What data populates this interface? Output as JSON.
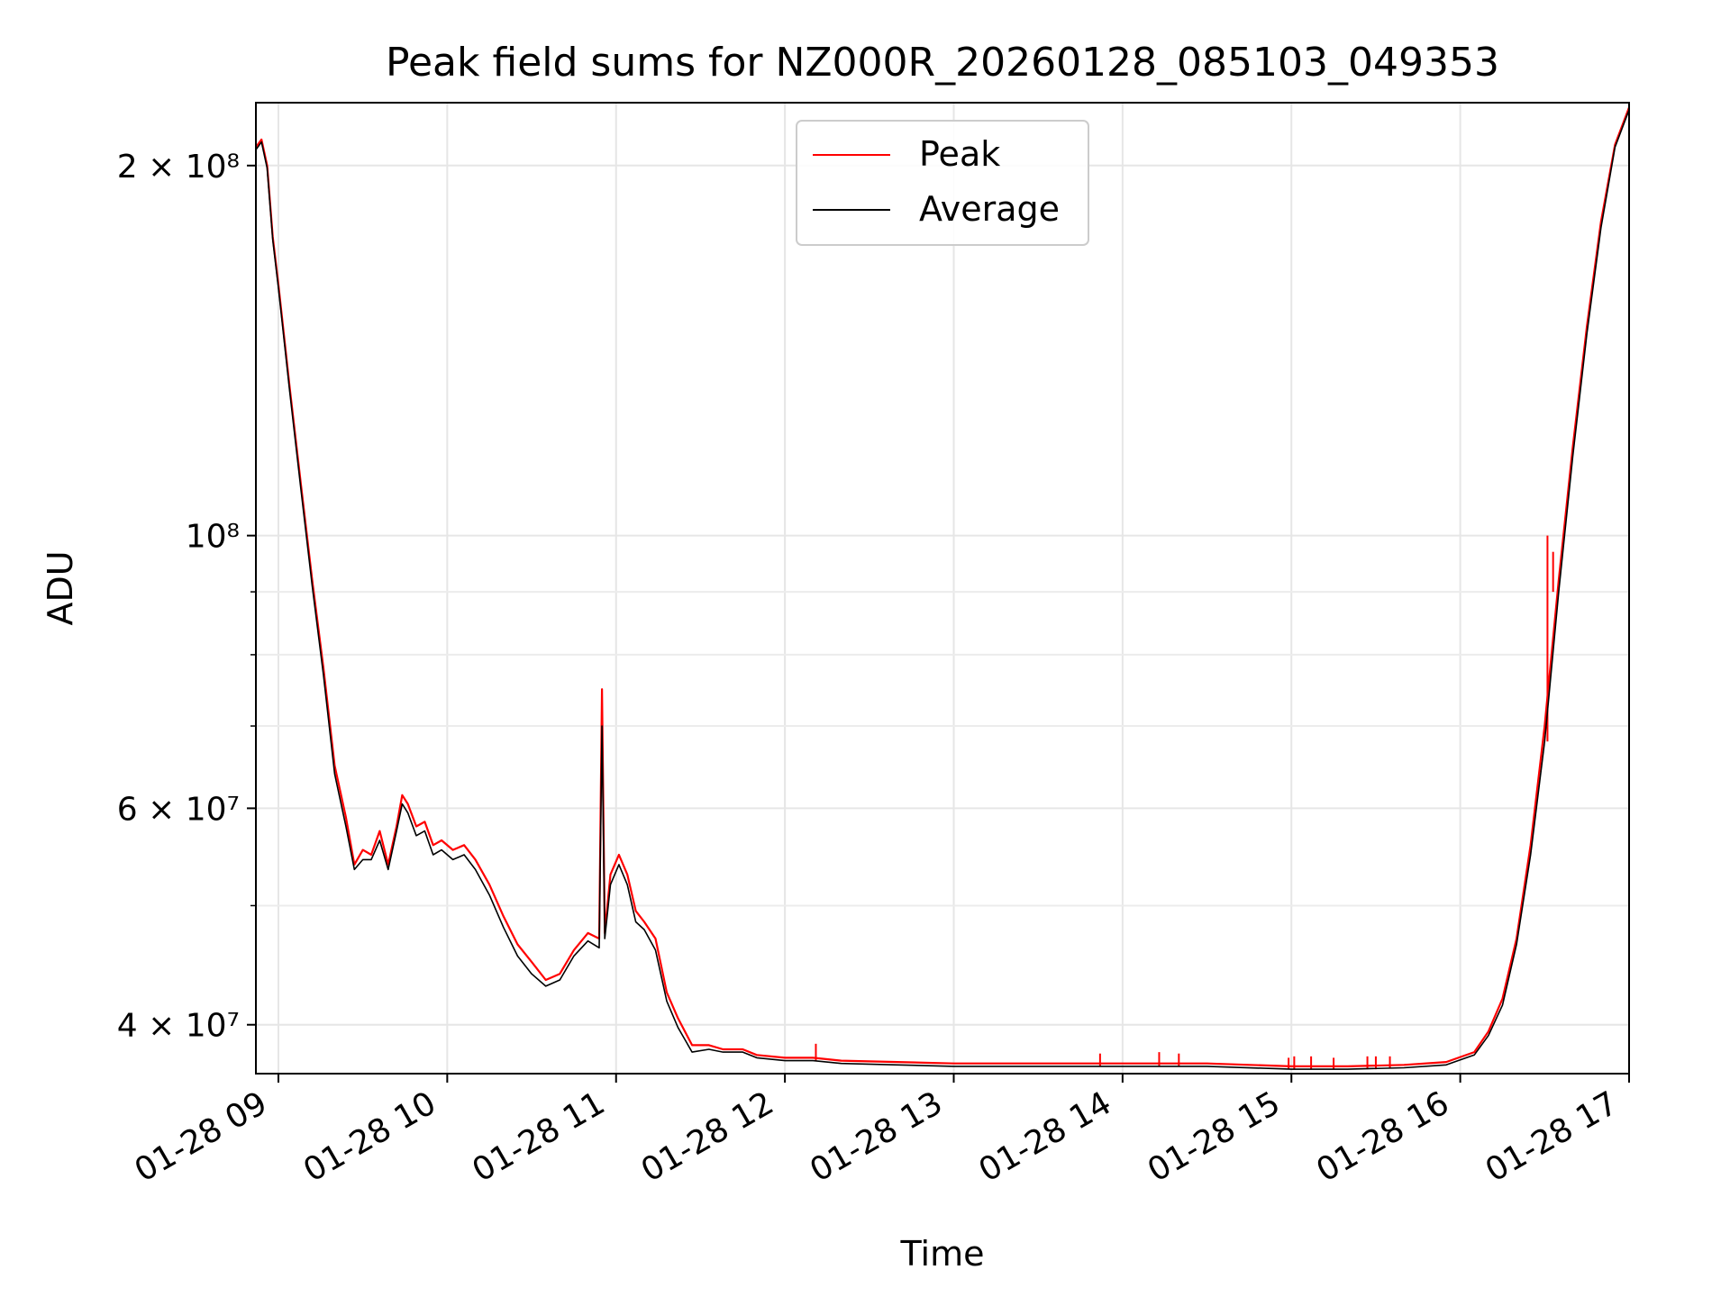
{
  "chart_data": {
    "type": "line",
    "title": "Peak field sums for NZ000R_20260128_085103_049353",
    "xlabel": "Time",
    "ylabel": "ADU",
    "y_scale": "log",
    "xlim": [
      "2026-01-28 08:52",
      "2026-01-28 17:00"
    ],
    "ylim": [
      36500000,
      225000000
    ],
    "x_ticks": [
      {
        "value": "2026-01-28 09:00",
        "label": "01-28 09"
      },
      {
        "value": "2026-01-28 10:00",
        "label": "01-28 10"
      },
      {
        "value": "2026-01-28 11:00",
        "label": "01-28 11"
      },
      {
        "value": "2026-01-28 12:00",
        "label": "01-28 12"
      },
      {
        "value": "2026-01-28 13:00",
        "label": "01-28 13"
      },
      {
        "value": "2026-01-28 14:00",
        "label": "01-28 14"
      },
      {
        "value": "2026-01-28 15:00",
        "label": "01-28 15"
      },
      {
        "value": "2026-01-28 16:00",
        "label": "01-28 16"
      },
      {
        "value": "2026-01-28 17:00",
        "label": "01-28 17"
      }
    ],
    "y_ticks": [
      {
        "value": 40000000,
        "label": "4 × 10⁷"
      },
      {
        "value": 60000000,
        "label": "6 × 10⁷"
      },
      {
        "value": 100000000,
        "label": "10⁸"
      },
      {
        "value": 200000000,
        "label": "2 × 10⁸"
      }
    ],
    "y_minor_ticks": [
      50000000,
      70000000,
      80000000,
      90000000
    ],
    "grid": true,
    "legend_position": "top-center",
    "series": [
      {
        "name": "Peak",
        "color": "#ff0000",
        "points": [
          [
            "2026-01-28 08:52",
            207000000
          ],
          [
            "2026-01-28 08:54",
            210000000
          ],
          [
            "2026-01-28 08:56",
            200000000
          ],
          [
            "2026-01-28 08:58",
            175000000
          ],
          [
            "2026-01-28 09:00",
            160000000
          ],
          [
            "2026-01-28 09:04",
            132000000
          ],
          [
            "2026-01-28 09:08",
            110000000
          ],
          [
            "2026-01-28 09:12",
            92000000
          ],
          [
            "2026-01-28 09:16",
            78000000
          ],
          [
            "2026-01-28 09:20",
            65000000
          ],
          [
            "2026-01-28 09:24",
            59000000
          ],
          [
            "2026-01-28 09:27",
            54000000
          ],
          [
            "2026-01-28 09:30",
            55500000
          ],
          [
            "2026-01-28 09:33",
            55000000
          ],
          [
            "2026-01-28 09:36",
            57500000
          ],
          [
            "2026-01-28 09:39",
            54000000
          ],
          [
            "2026-01-28 09:42",
            58000000
          ],
          [
            "2026-01-28 09:44",
            61500000
          ],
          [
            "2026-01-28 09:46",
            60500000
          ],
          [
            "2026-01-28 09:49",
            58000000
          ],
          [
            "2026-01-28 09:52",
            58500000
          ],
          [
            "2026-01-28 09:55",
            56000000
          ],
          [
            "2026-01-28 09:58",
            56500000
          ],
          [
            "2026-01-28 10:02",
            55500000
          ],
          [
            "2026-01-28 10:06",
            56000000
          ],
          [
            "2026-01-28 10:10",
            54500000
          ],
          [
            "2026-01-28 10:15",
            52000000
          ],
          [
            "2026-01-28 10:20",
            49000000
          ],
          [
            "2026-01-28 10:25",
            46500000
          ],
          [
            "2026-01-28 10:30",
            45000000
          ],
          [
            "2026-01-28 10:35",
            43500000
          ],
          [
            "2026-01-28 10:40",
            44000000
          ],
          [
            "2026-01-28 10:45",
            46000000
          ],
          [
            "2026-01-28 10:50",
            47500000
          ],
          [
            "2026-01-28 10:54",
            47000000
          ],
          [
            "2026-01-28 10:55",
            75000000
          ],
          [
            "2026-01-28 10:56",
            47500000
          ],
          [
            "2026-01-28 10:58",
            53000000
          ],
          [
            "2026-01-28 11:01",
            55000000
          ],
          [
            "2026-01-28 11:04",
            53000000
          ],
          [
            "2026-01-28 11:07",
            49500000
          ],
          [
            "2026-01-28 11:10",
            48500000
          ],
          [
            "2026-01-28 11:14",
            47000000
          ],
          [
            "2026-01-28 11:18",
            42500000
          ],
          [
            "2026-01-28 11:22",
            40500000
          ],
          [
            "2026-01-28 11:27",
            38500000
          ],
          [
            "2026-01-28 11:33",
            38500000
          ],
          [
            "2026-01-28 11:38",
            38200000
          ],
          [
            "2026-01-28 11:45",
            38200000
          ],
          [
            "2026-01-28 11:50",
            37800000
          ],
          [
            "2026-01-28 12:00",
            37600000
          ],
          [
            "2026-01-28 12:10",
            37600000
          ],
          [
            "2026-01-28 12:20",
            37400000
          ],
          [
            "2026-01-28 12:40",
            37300000
          ],
          [
            "2026-01-28 13:00",
            37200000
          ],
          [
            "2026-01-28 13:30",
            37200000
          ],
          [
            "2026-01-28 14:00",
            37200000
          ],
          [
            "2026-01-28 14:30",
            37200000
          ],
          [
            "2026-01-28 15:00",
            37000000
          ],
          [
            "2026-01-28 15:20",
            37000000
          ],
          [
            "2026-01-28 15:40",
            37100000
          ],
          [
            "2026-01-28 15:55",
            37300000
          ],
          [
            "2026-01-28 16:05",
            38000000
          ],
          [
            "2026-01-28 16:10",
            39500000
          ],
          [
            "2026-01-28 16:15",
            42000000
          ],
          [
            "2026-01-28 16:20",
            47000000
          ],
          [
            "2026-01-28 16:25",
            56000000
          ],
          [
            "2026-01-28 16:30",
            70000000
          ],
          [
            "2026-01-28 16:35",
            92000000
          ],
          [
            "2026-01-28 16:40",
            118000000
          ],
          [
            "2026-01-28 16:45",
            148000000
          ],
          [
            "2026-01-28 16:50",
            180000000
          ],
          [
            "2026-01-28 16:55",
            208000000
          ],
          [
            "2026-01-28 17:00",
            223000000
          ]
        ],
        "spikes": [
          [
            "2026-01-28 12:11",
            38600000
          ],
          [
            "2026-01-28 13:52",
            37900000
          ],
          [
            "2026-01-28 14:13",
            38000000
          ],
          [
            "2026-01-28 14:20",
            37900000
          ],
          [
            "2026-01-28 14:59",
            37600000
          ],
          [
            "2026-01-28 15:01",
            37700000
          ],
          [
            "2026-01-28 15:07",
            37700000
          ],
          [
            "2026-01-28 15:15",
            37600000
          ],
          [
            "2026-01-28 15:27",
            37700000
          ],
          [
            "2026-01-28 15:30",
            37700000
          ],
          [
            "2026-01-28 15:35",
            37700000
          ],
          [
            "2026-01-28 16:31",
            100000000
          ],
          [
            "2026-01-28 16:33",
            97000000
          ]
        ]
      },
      {
        "name": "Average",
        "color": "#000000",
        "points": [
          [
            "2026-01-28 08:52",
            206000000
          ],
          [
            "2026-01-28 08:54",
            209000000
          ],
          [
            "2026-01-28 08:56",
            199000000
          ],
          [
            "2026-01-28 08:58",
            174000000
          ],
          [
            "2026-01-28 09:00",
            159000000
          ],
          [
            "2026-01-28 09:04",
            131000000
          ],
          [
            "2026-01-28 09:08",
            109000000
          ],
          [
            "2026-01-28 09:12",
            91000000
          ],
          [
            "2026-01-28 09:16",
            77000000
          ],
          [
            "2026-01-28 09:20",
            64000000
          ],
          [
            "2026-01-28 09:24",
            58000000
          ],
          [
            "2026-01-28 09:27",
            53500000
          ],
          [
            "2026-01-28 09:30",
            54500000
          ],
          [
            "2026-01-28 09:33",
            54500000
          ],
          [
            "2026-01-28 09:36",
            56500000
          ],
          [
            "2026-01-28 09:39",
            53500000
          ],
          [
            "2026-01-28 09:42",
            57500000
          ],
          [
            "2026-01-28 09:44",
            60500000
          ],
          [
            "2026-01-28 09:46",
            59500000
          ],
          [
            "2026-01-28 09:49",
            57000000
          ],
          [
            "2026-01-28 09:52",
            57500000
          ],
          [
            "2026-01-28 09:55",
            55000000
          ],
          [
            "2026-01-28 09:58",
            55500000
          ],
          [
            "2026-01-28 10:02",
            54500000
          ],
          [
            "2026-01-28 10:06",
            55000000
          ],
          [
            "2026-01-28 10:10",
            53500000
          ],
          [
            "2026-01-28 10:15",
            51000000
          ],
          [
            "2026-01-28 10:20",
            48000000
          ],
          [
            "2026-01-28 10:25",
            45500000
          ],
          [
            "2026-01-28 10:30",
            44000000
          ],
          [
            "2026-01-28 10:35",
            43000000
          ],
          [
            "2026-01-28 10:40",
            43500000
          ],
          [
            "2026-01-28 10:45",
            45500000
          ],
          [
            "2026-01-28 10:50",
            46800000
          ],
          [
            "2026-01-28 10:54",
            46200000
          ],
          [
            "2026-01-28 10:55",
            70000000
          ],
          [
            "2026-01-28 10:56",
            47000000
          ],
          [
            "2026-01-28 10:58",
            52000000
          ],
          [
            "2026-01-28 11:01",
            54000000
          ],
          [
            "2026-01-28 11:04",
            52000000
          ],
          [
            "2026-01-28 11:07",
            48500000
          ],
          [
            "2026-01-28 11:10",
            47800000
          ],
          [
            "2026-01-28 11:14",
            46000000
          ],
          [
            "2026-01-28 11:18",
            41800000
          ],
          [
            "2026-01-28 11:22",
            39800000
          ],
          [
            "2026-01-28 11:27",
            38000000
          ],
          [
            "2026-01-28 11:33",
            38200000
          ],
          [
            "2026-01-28 11:38",
            38000000
          ],
          [
            "2026-01-28 11:45",
            38000000
          ],
          [
            "2026-01-28 11:50",
            37600000
          ],
          [
            "2026-01-28 12:00",
            37400000
          ],
          [
            "2026-01-28 12:10",
            37400000
          ],
          [
            "2026-01-28 12:20",
            37200000
          ],
          [
            "2026-01-28 12:40",
            37100000
          ],
          [
            "2026-01-28 13:00",
            37000000
          ],
          [
            "2026-01-28 13:30",
            37000000
          ],
          [
            "2026-01-28 14:00",
            37000000
          ],
          [
            "2026-01-28 14:30",
            37000000
          ],
          [
            "2026-01-28 15:00",
            36800000
          ],
          [
            "2026-01-28 15:20",
            36800000
          ],
          [
            "2026-01-28 15:40",
            36900000
          ],
          [
            "2026-01-28 15:55",
            37100000
          ],
          [
            "2026-01-28 16:05",
            37800000
          ],
          [
            "2026-01-28 16:10",
            39200000
          ],
          [
            "2026-01-28 16:15",
            41500000
          ],
          [
            "2026-01-28 16:20",
            46500000
          ],
          [
            "2026-01-28 16:25",
            55000000
          ],
          [
            "2026-01-28 16:30",
            68000000
          ],
          [
            "2026-01-28 16:35",
            90000000
          ],
          [
            "2026-01-28 16:40",
            116000000
          ],
          [
            "2026-01-28 16:45",
            146000000
          ],
          [
            "2026-01-28 16:50",
            178000000
          ],
          [
            "2026-01-28 16:55",
            207000000
          ],
          [
            "2026-01-28 17:00",
            222000000
          ]
        ]
      }
    ]
  }
}
